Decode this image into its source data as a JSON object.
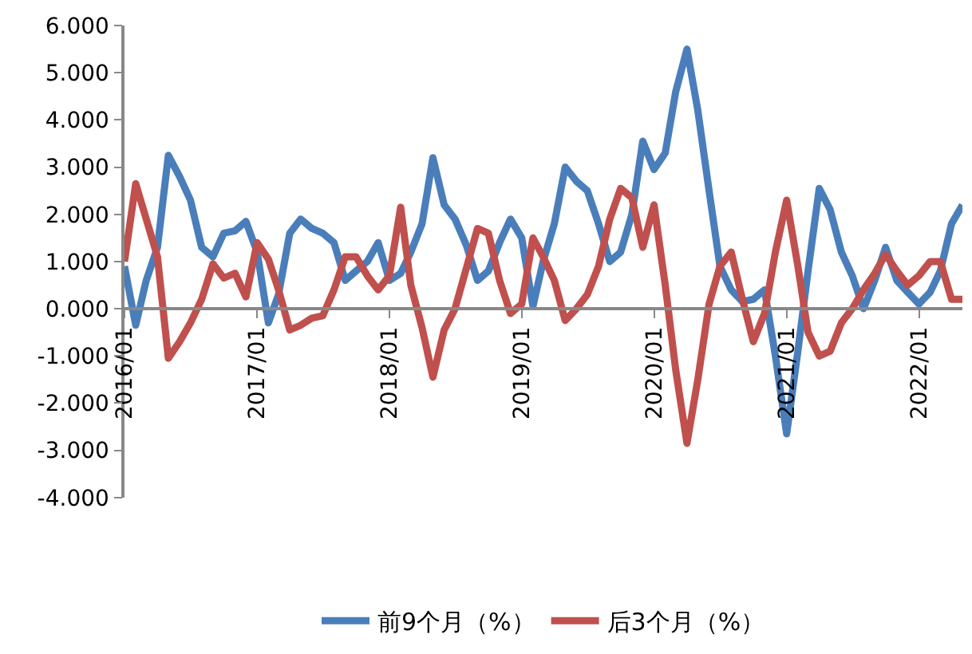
{
  "chart_data": {
    "type": "line",
    "x": [
      "2016-01",
      "2016-02",
      "2016-03",
      "2016-04",
      "2016-05",
      "2016-06",
      "2016-07",
      "2016-08",
      "2016-09",
      "2016-10",
      "2016-11",
      "2016-12",
      "2017-01",
      "2017-02",
      "2017-03",
      "2017-04",
      "2017-05",
      "2017-06",
      "2017-07",
      "2017-08",
      "2017-09",
      "2017-10",
      "2017-11",
      "2017-12",
      "2018-01",
      "2018-02",
      "2018-03",
      "2018-04",
      "2018-05",
      "2018-06",
      "2018-07",
      "2018-08",
      "2018-09",
      "2018-10",
      "2018-11",
      "2018-12",
      "2019-01",
      "2019-02",
      "2019-03",
      "2019-04",
      "2019-05",
      "2019-06",
      "2019-07",
      "2019-08",
      "2019-09",
      "2019-10",
      "2019-11",
      "2019-12",
      "2020-01",
      "2020-02",
      "2020-03",
      "2020-04",
      "2020-05",
      "2020-06",
      "2020-07",
      "2020-08",
      "2020-09",
      "2020-10",
      "2020-11",
      "2020-12",
      "2021-01",
      "2021-02",
      "2021-03",
      "2021-04",
      "2021-05",
      "2021-06",
      "2021-07",
      "2021-08",
      "2021-09",
      "2021-10",
      "2021-11",
      "2021-12",
      "2022-01",
      "2022-02",
      "2022-03",
      "2022-04",
      "2022-05"
    ],
    "series": [
      {
        "name": "前9个月（%）",
        "color": "#4a7ebb",
        "values": [
          0.9,
          -0.35,
          0.6,
          1.3,
          3.25,
          2.8,
          2.3,
          1.3,
          1.1,
          1.6,
          1.65,
          1.85,
          1.2,
          -0.3,
          0.3,
          1.6,
          1.9,
          1.7,
          1.6,
          1.4,
          0.6,
          0.8,
          1.0,
          1.4,
          0.6,
          0.75,
          1.2,
          1.8,
          3.2,
          2.2,
          1.9,
          1.35,
          0.6,
          0.8,
          1.4,
          1.9,
          1.5,
          0.05,
          1.0,
          1.8,
          3.0,
          2.7,
          2.5,
          1.8,
          1.0,
          1.2,
          2.0,
          3.55,
          2.95,
          3.3,
          4.6,
          5.5,
          4.2,
          2.5,
          0.9,
          0.4,
          0.15,
          0.2,
          0.4,
          -1.0,
          -2.65,
          -0.9,
          0.8,
          2.55,
          2.1,
          1.2,
          0.7,
          0.0,
          0.6,
          1.3,
          0.6,
          0.35,
          0.1,
          0.35,
          0.8,
          1.8,
          2.2
        ]
      },
      {
        "name": "后3个月（%）",
        "color": "#c0504d",
        "values": [
          1.0,
          2.65,
          1.9,
          1.1,
          -1.05,
          -0.7,
          -0.3,
          0.2,
          0.95,
          0.65,
          0.75,
          0.25,
          1.4,
          1.05,
          0.4,
          -0.45,
          -0.35,
          -0.2,
          -0.15,
          0.4,
          1.1,
          1.1,
          0.7,
          0.4,
          0.7,
          2.15,
          0.5,
          -0.4,
          -1.45,
          -0.45,
          0.0,
          0.85,
          1.7,
          1.6,
          0.6,
          -0.1,
          0.1,
          1.5,
          1.1,
          0.6,
          -0.25,
          0.0,
          0.3,
          0.9,
          1.9,
          2.55,
          2.35,
          1.3,
          2.2,
          0.5,
          -1.3,
          -2.85,
          -1.5,
          0.1,
          0.9,
          1.2,
          0.2,
          -0.7,
          -0.1,
          1.2,
          2.3,
          0.9,
          -0.5,
          -1.0,
          -0.9,
          -0.3,
          0.0,
          0.4,
          0.75,
          1.15,
          0.8,
          0.5,
          0.7,
          1.0,
          1.0,
          0.2,
          0.2
        ]
      }
    ],
    "xlim": [
      "2016-01",
      "2022-05"
    ],
    "xticks": [
      {
        "value": "2016-01",
        "label": "2016/01"
      },
      {
        "value": "2017-01",
        "label": "2017/01"
      },
      {
        "value": "2018-01",
        "label": "2018/01"
      },
      {
        "value": "2019-01",
        "label": "2019/01"
      },
      {
        "value": "2020-01",
        "label": "2020/01"
      },
      {
        "value": "2021-01",
        "label": "2021/01"
      },
      {
        "value": "2022-01",
        "label": "2022/01"
      }
    ],
    "ylim": [
      -4,
      6
    ],
    "yticks": [
      {
        "value": -4,
        "label": "-4.000"
      },
      {
        "value": -3,
        "label": "-3.000"
      },
      {
        "value": -2,
        "label": "-2.000"
      },
      {
        "value": -1,
        "label": "-1.000"
      },
      {
        "value": 0,
        "label": "0.000"
      },
      {
        "value": 1,
        "label": "1.000"
      },
      {
        "value": 2,
        "label": "2.000"
      },
      {
        "value": 3,
        "label": "3.000"
      },
      {
        "value": 4,
        "label": "4.000"
      },
      {
        "value": 5,
        "label": "5.000"
      },
      {
        "value": 6,
        "label": "6.000"
      }
    ],
    "legend": "bottom",
    "marker": "none",
    "line_style": "solid"
  }
}
